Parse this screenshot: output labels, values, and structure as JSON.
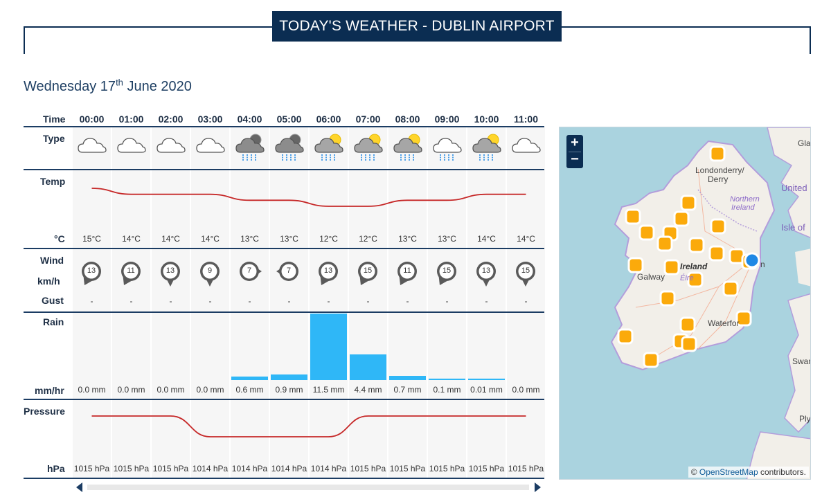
{
  "header": {
    "title": "TODAY'S WEATHER - DUBLIN AIRPORT"
  },
  "date": {
    "prefix": "Wednesday 17",
    "suffix": "th",
    "rest": " June 2020"
  },
  "labels": {
    "time": "Time",
    "type": "Type",
    "temp": "Temp",
    "temp_unit": "°C",
    "wind": "Wind",
    "wind_unit": "km/h",
    "gust": "Gust",
    "rain": "Rain",
    "rain_unit": "mm/hr",
    "pressure": "Pressure",
    "pressure_unit": "hPa"
  },
  "hours": [
    {
      "time": "00:00",
      "type": "cloud",
      "temp": "15°C",
      "temp_val": 15,
      "wind": "13",
      "wind_dir": "sw",
      "gust": "-",
      "rain": "0.0 mm",
      "rain_val": 0.0,
      "pressure": "1015 hPa",
      "pressure_val": 1015
    },
    {
      "time": "01:00",
      "type": "cloud",
      "temp": "14°C",
      "temp_val": 14,
      "wind": "11",
      "wind_dir": "sw",
      "gust": "-",
      "rain": "0.0 mm",
      "rain_val": 0.0,
      "pressure": "1015 hPa",
      "pressure_val": 1015
    },
    {
      "time": "02:00",
      "type": "cloud",
      "temp": "14°C",
      "temp_val": 14,
      "wind": "13",
      "wind_dir": "s",
      "gust": "-",
      "rain": "0.0 mm",
      "rain_val": 0.0,
      "pressure": "1015 hPa",
      "pressure_val": 1015
    },
    {
      "time": "03:00",
      "type": "cloud",
      "temp": "14°C",
      "temp_val": 14,
      "wind": "9",
      "wind_dir": "s",
      "gust": "-",
      "rain": "0.0 mm",
      "rain_val": 0.0,
      "pressure": "1014 hPa",
      "pressure_val": 1014
    },
    {
      "time": "04:00",
      "type": "rain-night",
      "temp": "13°C",
      "temp_val": 13,
      "wind": "7",
      "wind_dir": "e",
      "gust": "-",
      "rain": "0.6 mm",
      "rain_val": 0.6,
      "pressure": "1014 hPa",
      "pressure_val": 1014
    },
    {
      "time": "05:00",
      "type": "rain-night",
      "temp": "13°C",
      "temp_val": 13,
      "wind": "7",
      "wind_dir": "w",
      "gust": "-",
      "rain": "0.9 mm",
      "rain_val": 0.9,
      "pressure": "1014 hPa",
      "pressure_val": 1014
    },
    {
      "time": "06:00",
      "type": "rain-sun",
      "temp": "12°C",
      "temp_val": 12,
      "wind": "13",
      "wind_dir": "sw",
      "gust": "-",
      "rain": "11.5 mm",
      "rain_val": 11.5,
      "pressure": "1014 hPa",
      "pressure_val": 1014
    },
    {
      "time": "07:00",
      "type": "rain-sun",
      "temp": "12°C",
      "temp_val": 12,
      "wind": "15",
      "wind_dir": "sw",
      "gust": "-",
      "rain": "4.4 mm",
      "rain_val": 4.4,
      "pressure": "1015 hPa",
      "pressure_val": 1015
    },
    {
      "time": "08:00",
      "type": "rain-sun",
      "temp": "13°C",
      "temp_val": 13,
      "wind": "11",
      "wind_dir": "sw",
      "gust": "-",
      "rain": "0.7 mm",
      "rain_val": 0.7,
      "pressure": "1015 hPa",
      "pressure_val": 1015
    },
    {
      "time": "09:00",
      "type": "rain-cloud",
      "temp": "13°C",
      "temp_val": 13,
      "wind": "15",
      "wind_dir": "sw",
      "gust": "-",
      "rain": "0.1 mm",
      "rain_val": 0.1,
      "pressure": "1015 hPa",
      "pressure_val": 1015
    },
    {
      "time": "10:00",
      "type": "rain-sun",
      "temp": "14°C",
      "temp_val": 14,
      "wind": "13",
      "wind_dir": "s",
      "gust": "-",
      "rain": "0.01 mm",
      "rain_val": 0.01,
      "pressure": "1015 hPa",
      "pressure_val": 1015
    },
    {
      "time": "11:00",
      "type": "cloud",
      "temp": "14°C",
      "temp_val": 14,
      "wind": "15",
      "wind_dir": "s",
      "gust": "-",
      "rain": "0.0 mm",
      "rain_val": 0.0,
      "pressure": "1015 hPa",
      "pressure_val": 1015
    }
  ],
  "map": {
    "zoom_in": "+",
    "zoom_out": "−",
    "attribution_prefix": "© ",
    "attribution_link": "OpenStreetMap",
    "attribution_suffix": " contributors.",
    "labels": {
      "londonderry": "Londonderry/",
      "derry": "Derry",
      "northern": "Northern",
      "ireland_n": "Ireland",
      "united": "United",
      "isle_of": "Isle of",
      "gla": "Gla",
      "ireland": "Ireland",
      "ireland_irish": "Éire",
      "galway": "Galway",
      "waterford": "Waterfor",
      "swan": "Swan",
      "ply": "Ply",
      "n": "n"
    },
    "colors": {
      "sea": "#aad3df",
      "land": "#f2efe9",
      "station": "#fbaa0b",
      "selected": "#1e88e5"
    }
  }
}
